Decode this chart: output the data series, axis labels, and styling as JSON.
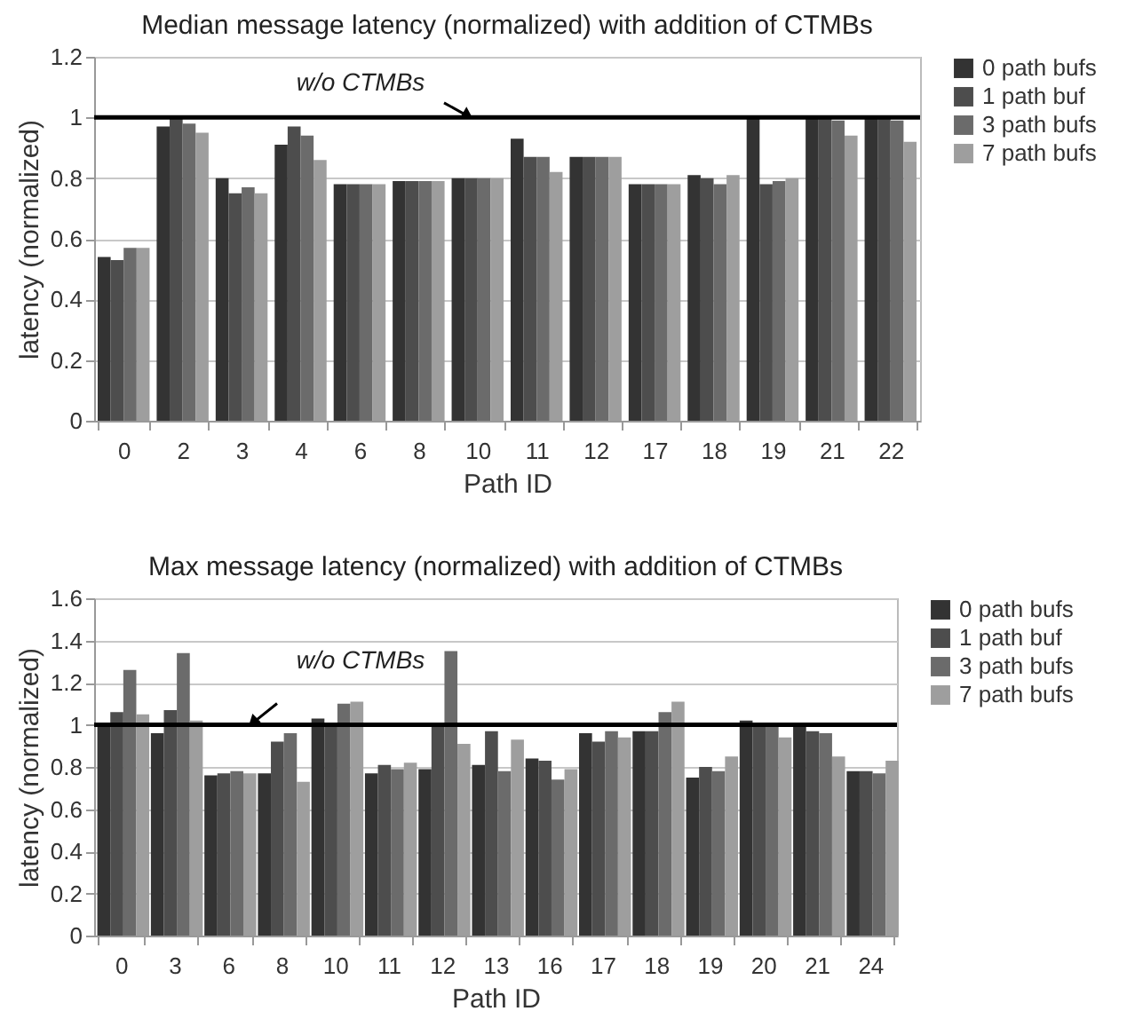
{
  "chart_data": [
    {
      "type": "bar",
      "title": "Median message latency (normalized) with addition of CTMBs",
      "xlabel": "Path ID",
      "ylabel": "latency (normalized)",
      "categories": [
        "0",
        "2",
        "3",
        "4",
        "6",
        "8",
        "10",
        "11",
        "12",
        "17",
        "18",
        "19",
        "21",
        "22"
      ],
      "series": [
        {
          "name": "0 path bufs",
          "color": "#333333",
          "values": [
            0.54,
            0.97,
            0.8,
            0.91,
            0.78,
            0.79,
            0.8,
            0.93,
            0.87,
            0.78,
            0.81,
            1.0,
            1.0,
            1.0
          ]
        },
        {
          "name": "1 path buf",
          "color": "#4d4d4d",
          "values": [
            0.53,
            1.0,
            0.75,
            0.97,
            0.78,
            0.79,
            0.8,
            0.87,
            0.87,
            0.78,
            0.8,
            0.78,
            1.0,
            1.0
          ]
        },
        {
          "name": "3 path bufs",
          "color": "#6b6b6b",
          "values": [
            0.57,
            0.98,
            0.77,
            0.94,
            0.78,
            0.79,
            0.8,
            0.87,
            0.87,
            0.78,
            0.78,
            0.79,
            0.99,
            0.99
          ]
        },
        {
          "name": "7 path bufs",
          "color": "#9e9e9e",
          "values": [
            0.57,
            0.95,
            0.75,
            0.86,
            0.78,
            0.79,
            0.8,
            0.82,
            0.87,
            0.78,
            0.81,
            0.8,
            0.94,
            0.92
          ]
        }
      ],
      "ylim": [
        0,
        1.2
      ],
      "yticks": [
        0,
        0.2,
        0.4,
        0.6,
        0.8,
        1,
        1.2
      ],
      "grid": "y",
      "legend": "right",
      "ref_lines": [
        {
          "axis": "y",
          "value": 1,
          "label": "w/o CTMBs",
          "color": "#000000"
        }
      ]
    },
    {
      "type": "bar",
      "title": "Max message latency (normalized) with addition of CTMBs",
      "xlabel": "Path ID",
      "ylabel": "latency (normalized)",
      "categories": [
        "0",
        "3",
        "6",
        "8",
        "10",
        "11",
        "12",
        "13",
        "16",
        "17",
        "18",
        "19",
        "20",
        "21",
        "24"
      ],
      "series": [
        {
          "name": "0 path bufs",
          "color": "#333333",
          "values": [
            1.01,
            0.96,
            0.76,
            0.77,
            1.03,
            0.77,
            0.79,
            0.81,
            0.84,
            0.96,
            0.97,
            0.75,
            1.02,
            0.99,
            0.78
          ]
        },
        {
          "name": "1 path buf",
          "color": "#4d4d4d",
          "values": [
            1.06,
            1.07,
            0.77,
            0.92,
            1.0,
            0.81,
            1.0,
            0.97,
            0.83,
            0.92,
            0.97,
            0.8,
            1.01,
            0.97,
            0.78
          ]
        },
        {
          "name": "3 path bufs",
          "color": "#6b6b6b",
          "values": [
            1.26,
            1.34,
            0.78,
            0.96,
            1.1,
            0.79,
            1.35,
            0.78,
            0.74,
            0.97,
            1.06,
            0.78,
            0.99,
            0.96,
            0.77
          ]
        },
        {
          "name": "7 path bufs",
          "color": "#9e9e9e",
          "values": [
            1.05,
            1.02,
            0.77,
            0.73,
            1.11,
            0.82,
            0.91,
            0.93,
            0.79,
            0.94,
            1.11,
            0.85,
            0.94,
            0.85,
            0.83
          ]
        }
      ],
      "ylim": [
        0,
        1.6
      ],
      "yticks": [
        0,
        0.2,
        0.4,
        0.6,
        0.8,
        1,
        1.2,
        1.4,
        1.6
      ],
      "grid": "y",
      "legend": "right",
      "ref_lines": [
        {
          "axis": "y",
          "value": 1,
          "label": "w/o CTMBs",
          "color": "#000000"
        }
      ]
    }
  ]
}
